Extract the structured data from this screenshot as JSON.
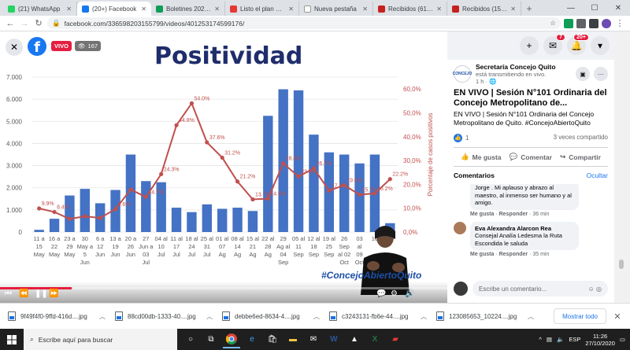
{
  "browser": {
    "tabs": [
      {
        "title": "(21) WhatsApp",
        "color": "#25d366",
        "active": false
      },
      {
        "title": "(20+) Facebook",
        "color": "#1877f2",
        "active": true
      },
      {
        "title": "Boletines 2020 - p",
        "color": "#0f9d58",
        "active": false
      },
      {
        "title": "Listo el plan opera",
        "color": "#e53935",
        "active": false
      },
      {
        "title": "Nueva pestaña",
        "color": "#ffffff",
        "active": false
      },
      {
        "title": "Recibidos (61) - co",
        "color": "#c5221f",
        "active": false
      },
      {
        "title": "Recibidos (156) - c",
        "color": "#c5221f",
        "active": false
      }
    ],
    "url": "facebook.com/336598203155799/videos/401253174599176/"
  },
  "video": {
    "live_label": "VIVO",
    "viewers": "167",
    "slide_title": "Positividad",
    "hashtag": "#ConcejoAbiertoQuito"
  },
  "chart_data": {
    "type": "bar",
    "title": "Positividad",
    "categories": [
      "11 a 15 May",
      "16 a 22 May",
      "23 a 29 May",
      "30 May a 5 Jun",
      "6 a 12 Jun",
      "13 a 19 Jun",
      "20 a 26 Jun",
      "27 Jun a 03 Jul",
      "04 al 10 Jul",
      "11 al 17 Jul",
      "18 al 24 Jul",
      "25 al 31 Jul",
      "01 al 07 Ag",
      "08 al 14 Ag",
      "15 al 21 Ag",
      "22 al 28 Ag",
      "29 Ag al 04 Sep",
      "05 al 11 Sep",
      "12 al 18 Sep",
      "19 al 25 Sep",
      "26 Sep al 02 Oct",
      "03 al 09 Oct",
      "10 al 16 Oct",
      "17 al 23 Oct"
    ],
    "x_tick_rows": [
      [
        "11 a",
        "16 a",
        "23 a",
        "30",
        "6 a",
        "13 a",
        "20 a",
        "27",
        "04 al",
        "11 al",
        "18 al",
        "25 al",
        "01 al",
        "08 al",
        "15 al",
        "22 al",
        "29",
        "05 al",
        "12 al",
        "19 al",
        "26",
        "03",
        "10",
        ""
      ],
      [
        "15",
        "22",
        "29",
        "May a",
        "12",
        "19",
        "26",
        "Jun a",
        "10",
        "17",
        "24",
        "31",
        "07",
        "14",
        "21",
        "28",
        "Ag al",
        "11",
        "18",
        "25",
        "Sep",
        "al",
        "",
        ""
      ],
      [
        "May",
        "May",
        "May",
        "5",
        "Jun",
        "Jun",
        "Jun",
        "03",
        "Jul",
        "Jul",
        "Jul",
        "Jul",
        "Ag",
        "Ag",
        "Ag",
        "Ag",
        "04",
        "Sep",
        "Sep",
        "Sep",
        "al 02",
        "09",
        "",
        ""
      ],
      [
        "",
        "",
        "",
        "Jun",
        "",
        "",
        "",
        "Jul",
        "",
        "",
        "",
        "",
        "",
        "",
        "",
        "",
        "Sep",
        "",
        "",
        "",
        "Oct",
        "Oct",
        "",
        ""
      ]
    ],
    "series": [
      {
        "type": "bar",
        "color": "#4472c4",
        "values": [
          100,
          600,
          1650,
          1950,
          1300,
          1900,
          3500,
          2300,
          2250,
          1100,
          900,
          1250,
          1050,
          1100,
          950,
          5250,
          6450,
          6400,
          4400,
          3600,
          3500,
          3100,
          3500,
          400
        ]
      },
      {
        "type": "line",
        "color": "#c0504d",
        "values": [
          9.9,
          8.4,
          5.5,
          6.6,
          5.9,
          9.6,
          17.8,
          14.7,
          24.3,
          44.8,
          54.0,
          37.6,
          31.2,
          21.2,
          13.7,
          14.0,
          28.8,
          23.3,
          26.7,
          17.4,
          19.6,
          15.7,
          16.2,
          22.2
        ]
      }
    ],
    "data_labels": [
      "9.9%",
      "8.4%",
      "",
      "",
      "",
      "9.6%",
      "",
      "14.7%",
      "24.3%",
      "44.8%",
      "54.0%",
      "37.6%",
      "31.2%",
      "21.2%",
      "13.7%",
      "14.0%",
      "28.8%",
      "23.3%",
      "26.7%",
      "17.4%",
      "19.6%",
      "15.7%",
      "16.2%",
      "22.2%"
    ],
    "ylim_left": [
      0,
      7000
    ],
    "ylim_right": [
      0,
      65
    ],
    "y_left_ticks": [
      "0",
      "1.000",
      "2.000",
      "3.000",
      "4.000",
      "5.000",
      "6.000",
      "7.000"
    ],
    "y_right_ticks": [
      "0,0%",
      "10,0%",
      "20,0%",
      "30,0%",
      "40,0%",
      "50,0%",
      "60,0%"
    ],
    "ylabel_right": "Porcentaje de casos positivos",
    "grid": true
  },
  "panel": {
    "page_name": "Secretaría Concejo Quito",
    "status": "está transmitiendo en vivo.",
    "time": "1 h",
    "avatar_text": "CONCEJO",
    "messenger_badge": "7",
    "notif_badge": "20+",
    "post_title": "EN VIVO | Sesión N°101 Ordinaria del Concejo Metropolitano de...",
    "post_desc": "EN VIVO | Sesión N°101 Ordinaria del Concejo Metropolitano de Quito.",
    "post_tag": "#ConcejoAbiertoQuito",
    "likes": "1",
    "shares": "3 veces compartido",
    "like_label": "Me gusta",
    "comment_label": "Comentar",
    "share_label": "Compartir",
    "comments_header": "Comentarios",
    "hide_label": "Ocultar",
    "comments": [
      {
        "name": "",
        "text": "Jorge . Mi aplauso y abrazo al maestro, al inmenso ser humano y al amigo.",
        "like": "Me gusta",
        "reply": "Responder",
        "time": "36 min"
      },
      {
        "name": "Eva Alexandra Alarcon Rea",
        "text": "Consejal Analía Ledesma la Ruta Escondida le saluda",
        "like": "Me gusta",
        "reply": "Responder",
        "time": "35 min"
      }
    ],
    "comment_placeholder": "Escribe un comentario..."
  },
  "downloads": {
    "files": [
      "9f49f4f0-9ffd-416d....jpg",
      "88cd00db-1333-40....jpg",
      "debbe6ed-8634-4....jpg",
      "c3243131-fb6e-44....jpg",
      "123085653_10224....jpg"
    ],
    "show_all": "Mostrar todo"
  },
  "taskbar": {
    "search_placeholder": "Escribe aquí para buscar",
    "lang": "ESP",
    "time": "11:26",
    "date": "27/10/2020"
  }
}
